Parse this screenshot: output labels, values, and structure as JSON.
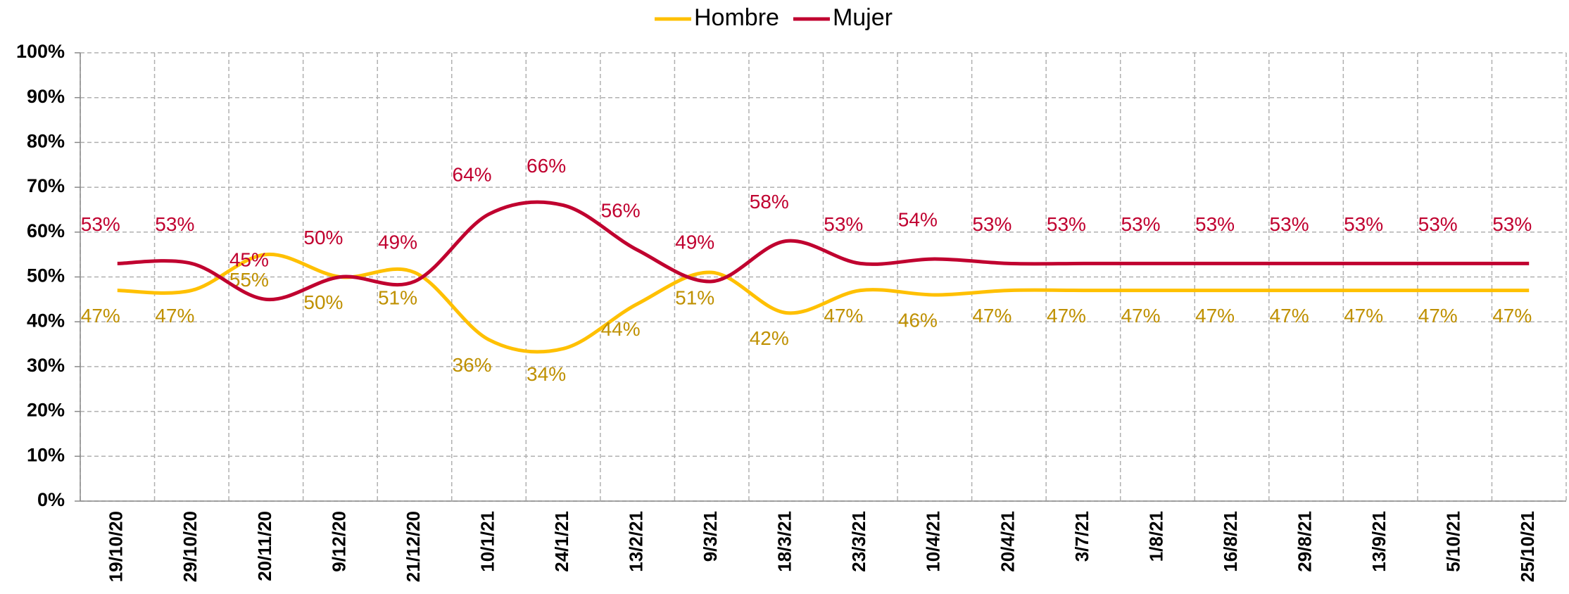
{
  "chart_data": {
    "type": "line",
    "categories": [
      "19/10/20",
      "29/10/20",
      "20/11/20",
      "9/12/20",
      "21/12/20",
      "10/1/21",
      "24/1/21",
      "13/2/21",
      "9/3/21",
      "18/3/21",
      "23/3/21",
      "10/4/21",
      "20/4/21",
      "3/7/21",
      "1/8/21",
      "16/8/21",
      "29/8/21",
      "13/9/21",
      "5/10/21",
      "25/10/21"
    ],
    "series": [
      {
        "name": "Hombre",
        "color": "#ffc000",
        "values": [
          47,
          47,
          55,
          50,
          51,
          36,
          34,
          44,
          51,
          42,
          47,
          46,
          47,
          47,
          47,
          47,
          47,
          47,
          47,
          47
        ],
        "value_labels": [
          "47%",
          "47%",
          "55%",
          "50%",
          "51%",
          "36%",
          "34%",
          "44%",
          "51%",
          "42%",
          "47%",
          "46%",
          "47%",
          "47%",
          "47%",
          "47%",
          "47%",
          "47%",
          "47%",
          "47%"
        ]
      },
      {
        "name": "Mujer",
        "color": "#c0002f",
        "values": [
          53,
          53,
          45,
          50,
          49,
          64,
          66,
          56,
          49,
          58,
          53,
          54,
          53,
          53,
          53,
          53,
          53,
          53,
          53,
          53
        ],
        "value_labels": [
          "53%",
          "53%",
          "45%",
          "50%",
          "49%",
          "64%",
          "66%",
          "56%",
          "49%",
          "58%",
          "53%",
          "54%",
          "53%",
          "53%",
          "53%",
          "53%",
          "53%",
          "53%",
          "53%",
          "53%"
        ]
      }
    ],
    "ylim": [
      0,
      100
    ],
    "yticks": [
      {
        "value": 0,
        "label": "0%"
      },
      {
        "value": 10,
        "label": "10%"
      },
      {
        "value": 20,
        "label": "20%"
      },
      {
        "value": 30,
        "label": "30%"
      },
      {
        "value": 40,
        "label": "40%"
      },
      {
        "value": 50,
        "label": "50%"
      },
      {
        "value": 60,
        "label": "60%"
      },
      {
        "value": 70,
        "label": "70%"
      },
      {
        "value": 80,
        "label": "80%"
      },
      {
        "value": 90,
        "label": "90%"
      },
      {
        "value": 100,
        "label": "100%"
      }
    ],
    "grid": true,
    "legend": "top"
  }
}
